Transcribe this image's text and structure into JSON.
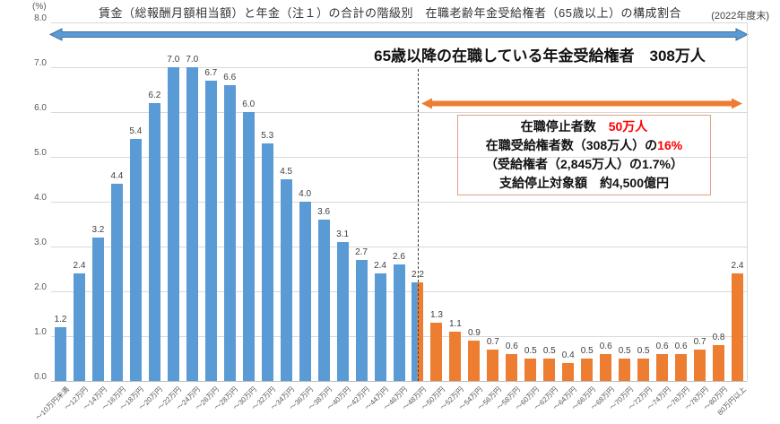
{
  "header": {
    "title": "賃金（総報酬月額相当額）と年金（注１）の合計の階級別　在職老齢年金受給権者（65歳以上）の構成割合",
    "date_note": "(2022年度末)"
  },
  "axes": {
    "unit_label": "(%)"
  },
  "annotations": {
    "upper": "65歳以降の在職している年金受給権者　308万人"
  },
  "info_box": {
    "line1_label": "在職停止者数",
    "line1_value": "50万人",
    "line2_prefix": "在職受給権者数（308万人）の",
    "line2_value": "16%",
    "line3": "（受給権者（2,845万人）の1.7%）",
    "line4": "支給停止対象額　約4,500億円"
  },
  "colors": {
    "bar_blue": "#5B9BD5",
    "bar_orange": "#ED7D31",
    "arrow_blue_fill": "#5B9BD5",
    "arrow_blue_border": "#41719C",
    "arrow_orange_fill": "#ED7D31",
    "accent_red": "#FF0000",
    "gridline": "#D9D9D9",
    "info_box_border": "#DFA183"
  },
  "chart_data": {
    "type": "bar",
    "title": "賃金（総報酬月額相当額）と年金（注１）の合計の階級別　在職老齢年金受給権者（65歳以上）の構成割合",
    "ylabel": "(%)",
    "xlabel": "",
    "ylim": [
      0,
      8
    ],
    "ytick_step": 1,
    "grid": "horizontal",
    "legend": "none",
    "categories": [
      "～10万円未満",
      "～12万円",
      "～14万円",
      "～16万円",
      "～18万円",
      "～20万円",
      "～22万円",
      "～24万円",
      "～26万円",
      "～28万円",
      "～30万円",
      "～32万円",
      "～34万円",
      "～36万円",
      "～38万円",
      "～40万円",
      "～42万円",
      "～44万円",
      "～46万円",
      "～48万円",
      "～50万円",
      "～52万円",
      "～54万円",
      "～56万円",
      "～58万円",
      "～60万円",
      "～62万円",
      "～64万円",
      "～66万円",
      "～68万円",
      "～70万円",
      "～72万円",
      "～74万円",
      "～76万円",
      "～78万円",
      "～80万円",
      "80万円以上"
    ],
    "values": [
      1.2,
      2.4,
      3.2,
      4.4,
      5.4,
      6.2,
      7.0,
      7.0,
      6.7,
      6.6,
      6.0,
      5.3,
      4.5,
      4.0,
      3.6,
      3.1,
      2.7,
      2.4,
      2.6,
      2.2,
      1.3,
      1.1,
      0.9,
      0.7,
      0.6,
      0.5,
      0.5,
      0.4,
      0.5,
      0.6,
      0.5,
      0.5,
      0.6,
      0.6,
      0.7,
      0.8,
      2.4
    ],
    "bar_colors": [
      "blue",
      "blue",
      "blue",
      "blue",
      "blue",
      "blue",
      "blue",
      "blue",
      "blue",
      "blue",
      "blue",
      "blue",
      "blue",
      "blue",
      "blue",
      "blue",
      "blue",
      "blue",
      "blue",
      "split",
      "orange",
      "orange",
      "orange",
      "orange",
      "orange",
      "orange",
      "orange",
      "orange",
      "orange",
      "orange",
      "orange",
      "orange",
      "orange",
      "orange",
      "orange",
      "orange",
      "orange"
    ]
  }
}
